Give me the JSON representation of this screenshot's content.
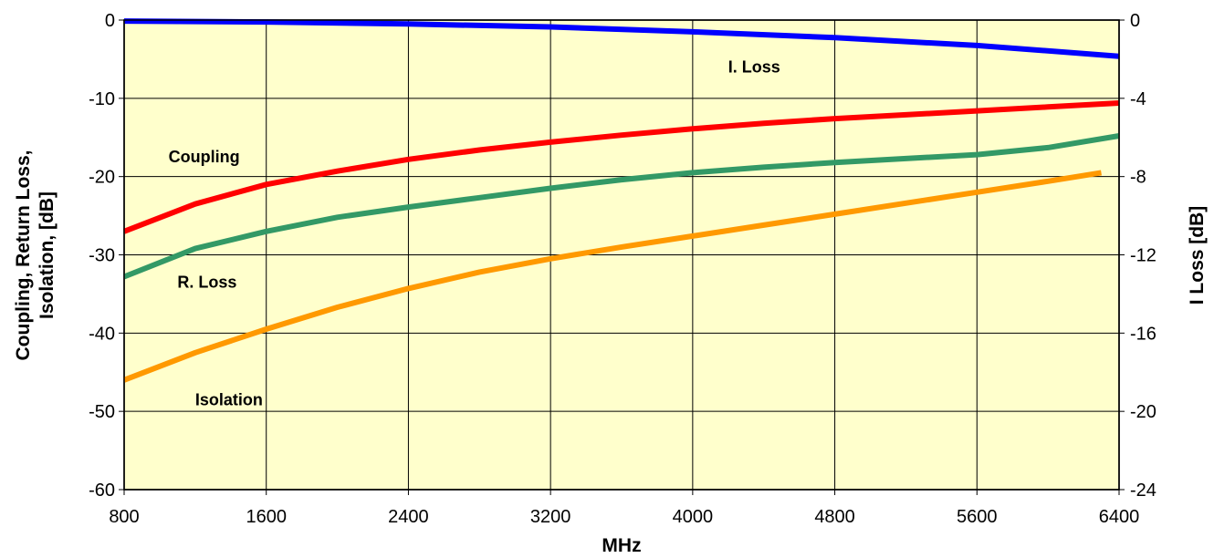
{
  "chart_data": {
    "type": "line",
    "background_color": "#FFFFCC",
    "grid": true,
    "xlabel": "MHz",
    "ylabel_left": "Coupling, Return Loss, Isolation, [dB]",
    "ylabel_left_lines": [
      "Coupling, Return Loss,",
      "Isolation, [dB]"
    ],
    "ylabel_right": "I Loss [dB]",
    "xlim": [
      800,
      6400
    ],
    "ylim_left": [
      -60,
      0
    ],
    "ylim_right": [
      -24,
      0
    ],
    "x_ticks": [
      800,
      1600,
      2400,
      3200,
      4000,
      4800,
      5600,
      6400
    ],
    "y_ticks_left": [
      0,
      -10,
      -20,
      -30,
      -40,
      -50,
      -60
    ],
    "y_ticks_right": [
      0,
      -4,
      -8,
      -12,
      -16,
      -20,
      -24
    ],
    "series": [
      {
        "name": "I. Loss",
        "axis": "right",
        "color": "#0000FF",
        "x": [
          800,
          1600,
          2400,
          3200,
          4000,
          4800,
          5600,
          6400
        ],
        "y": [
          -0.05,
          -0.1,
          -0.2,
          -0.35,
          -0.6,
          -0.9,
          -1.3,
          -1.85
        ]
      },
      {
        "name": "Coupling",
        "axis": "left",
        "color": "#FF0000",
        "x": [
          800,
          1200,
          1600,
          2000,
          2400,
          2800,
          3200,
          3600,
          4000,
          4400,
          4800,
          5200,
          5600,
          6000,
          6400
        ],
        "y": [
          -27,
          -23.5,
          -21,
          -19.3,
          -17.8,
          -16.6,
          -15.6,
          -14.7,
          -13.9,
          -13.2,
          -12.6,
          -12.1,
          -11.6,
          -11.1,
          -10.6
        ]
      },
      {
        "name": "R. Loss",
        "axis": "left",
        "color": "#339966",
        "x": [
          800,
          1200,
          1600,
          2000,
          2400,
          2800,
          3200,
          3600,
          4000,
          4400,
          4800,
          5200,
          5600,
          6000,
          6400
        ],
        "y": [
          -32.8,
          -29.2,
          -27,
          -25.2,
          -23.9,
          -22.7,
          -21.5,
          -20.4,
          -19.5,
          -18.8,
          -18.2,
          -17.7,
          -17.2,
          -16.3,
          -14.8
        ]
      },
      {
        "name": "Isolation",
        "axis": "left",
        "color": "#FF9900",
        "x": [
          800,
          1200,
          1600,
          2000,
          2400,
          2800,
          3200,
          3600,
          4000,
          4400,
          4800,
          5200,
          5600,
          6000,
          6300
        ],
        "y": [
          -46,
          -42.5,
          -39.5,
          -36.7,
          -34.3,
          -32.2,
          -30.5,
          -29,
          -27.6,
          -26.2,
          -24.8,
          -23.4,
          -22,
          -20.6,
          -19.5
        ]
      }
    ],
    "annotations": [
      {
        "text": "I. Loss",
        "x": 4200,
        "y": -6
      },
      {
        "text": "Coupling",
        "x": 1050,
        "y": -17.5
      },
      {
        "text": "R. Loss",
        "x": 1100,
        "y": -33.5
      },
      {
        "text": "Isolation",
        "x": 1200,
        "y": -48.5
      }
    ]
  }
}
